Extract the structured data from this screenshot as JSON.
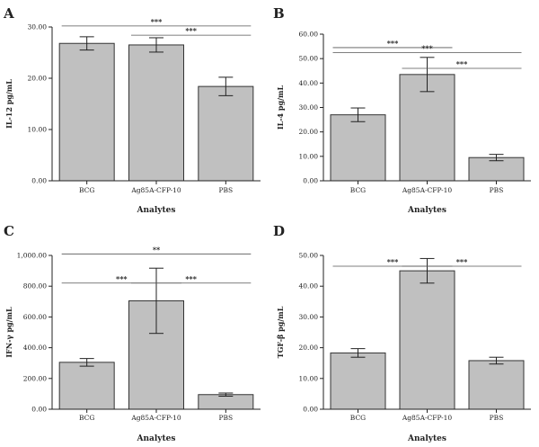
{
  "chart_data": [
    {
      "panel": "A",
      "type": "bar",
      "categories": [
        "BCG",
        "Ag85A-CFP-10",
        "PBS"
      ],
      "values": [
        26.8,
        26.5,
        18.4
      ],
      "errors": [
        1.3,
        1.4,
        1.8
      ],
      "xlabel": "Analytes",
      "ylabel": "IL-12 pg/mL",
      "ylim": [
        0,
        30
      ],
      "yticks": [
        0,
        10,
        20,
        30
      ],
      "tick_labels": [
        "0.00",
        "10.00",
        "20.00",
        "30.00"
      ],
      "grid": false,
      "annotations": [
        {
          "text": "***",
          "from": 0,
          "to": 2,
          "y": 30.2
        },
        {
          "text": "***",
          "from": 1,
          "to": 2,
          "y": 28.4
        }
      ]
    },
    {
      "panel": "B",
      "type": "bar",
      "categories": [
        "BCG",
        "Ag85A-CFP-10",
        "PBS"
      ],
      "values": [
        27.0,
        43.5,
        9.5
      ],
      "errors": [
        2.8,
        7.0,
        1.3
      ],
      "xlabel": "Analytes",
      "ylabel": "IL-4 pg/mL",
      "ylim": [
        0,
        60
      ],
      "yticks": [
        0,
        10,
        20,
        30,
        40,
        50,
        60
      ],
      "tick_labels": [
        "0.00",
        "10.00",
        "20.00",
        "30.00",
        "40.00",
        "50.00",
        "60.00"
      ],
      "grid": false,
      "annotations": [
        {
          "text": "***",
          "from": 0,
          "to": 1,
          "y": 54.5
        },
        {
          "text": "***",
          "from": 0,
          "to": 2,
          "y": 52.5
        },
        {
          "text": "***",
          "from": 1,
          "to": 2,
          "y": 46.0
        }
      ]
    },
    {
      "panel": "C",
      "type": "bar",
      "categories": [
        "BCG",
        "Ag85A-CFP-10",
        "PBS"
      ],
      "values": [
        305,
        705,
        95
      ],
      "errors": [
        25,
        212,
        10
      ],
      "xlabel": "Analytes",
      "ylabel": "IFN-γ pg/mL",
      "ylim": [
        0,
        1000
      ],
      "yticks": [
        0,
        200,
        400,
        600,
        800,
        1000
      ],
      "tick_labels": [
        "0.00",
        "200.00",
        "400.00",
        "600.00",
        "800.00",
        "1,000.00"
      ],
      "grid": false,
      "annotations": [
        {
          "text": "**",
          "from": 0,
          "to": 2,
          "y": 1010
        },
        {
          "text": "***",
          "from": 0,
          "to": 1,
          "y": 820
        },
        {
          "text": "***",
          "from": 1,
          "to": 2,
          "y": 820
        }
      ]
    },
    {
      "panel": "D",
      "type": "bar",
      "categories": [
        "BCG",
        "Ag85A-CFP-10",
        "PBS"
      ],
      "values": [
        18.3,
        45.0,
        15.8
      ],
      "errors": [
        1.4,
        4.0,
        1.1
      ],
      "xlabel": "Analytes",
      "ylabel": "TGF-β pg/mL",
      "ylim": [
        0,
        50
      ],
      "yticks": [
        0,
        10,
        20,
        30,
        40,
        50
      ],
      "tick_labels": [
        "0.00",
        "10.00",
        "20.00",
        "30.00",
        "40.00",
        "50.00"
      ],
      "grid": false,
      "annotations": [
        {
          "text": "***",
          "from": 0,
          "to": 1,
          "y": 46.5
        },
        {
          "text": "***",
          "from": 1,
          "to": 2,
          "y": 46.5
        }
      ]
    }
  ],
  "style": {
    "bar_fill": "#c0c0c0",
    "bar_stroke": "#333333",
    "axis_color": "#222222",
    "bracket_color": "#555555"
  }
}
